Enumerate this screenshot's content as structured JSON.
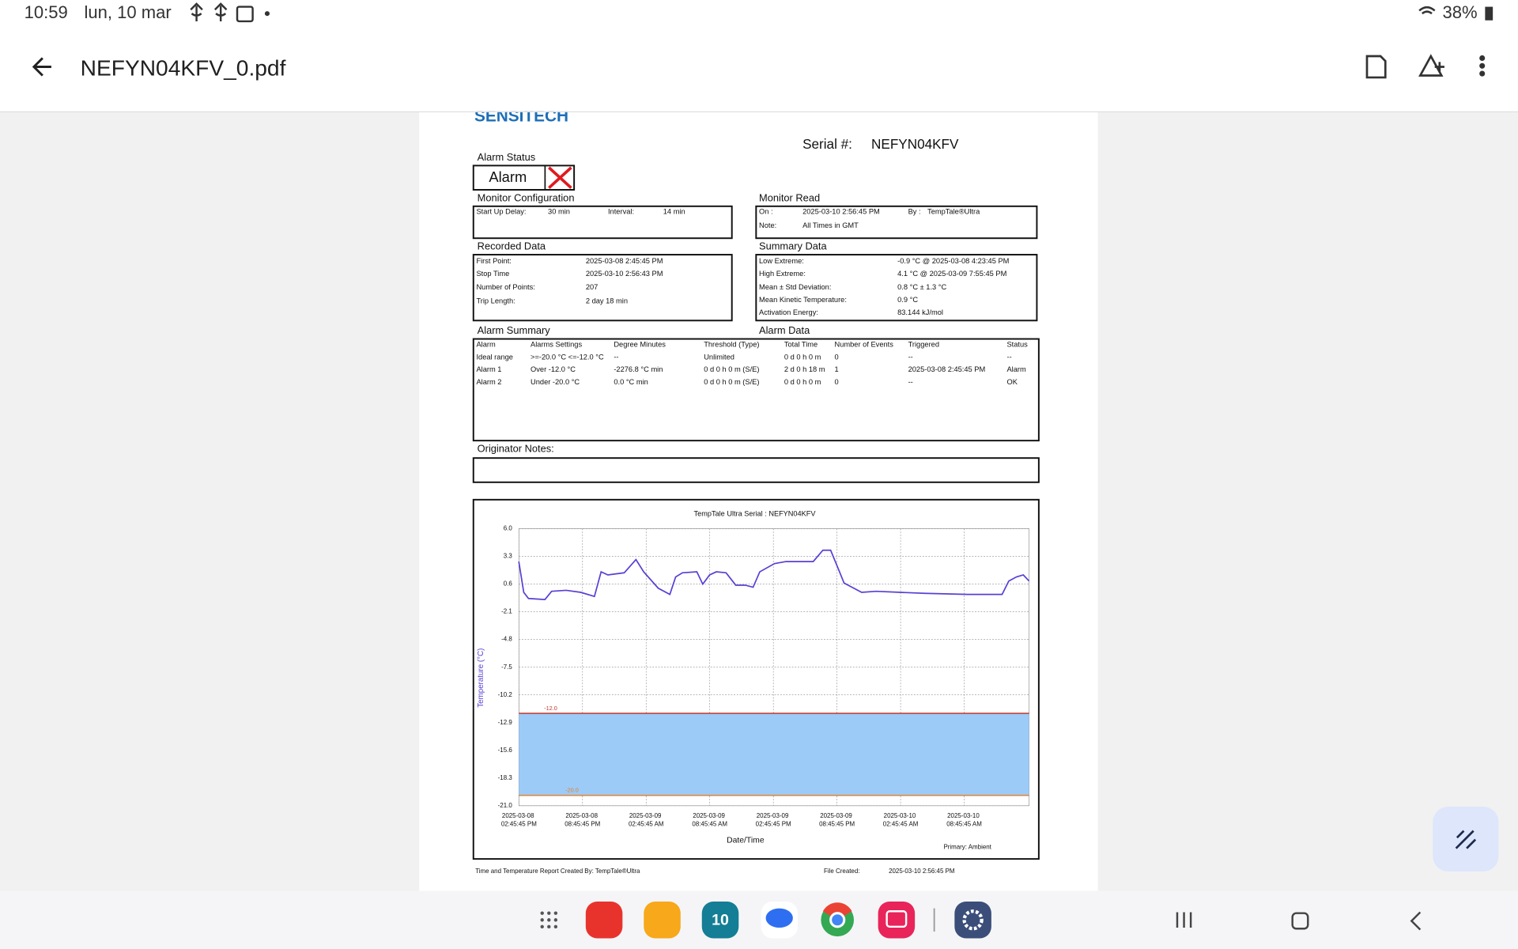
{
  "status_bar": {
    "time": "10:59",
    "date": "lun, 10 mar",
    "battery": "38%"
  },
  "app_bar": {
    "file_name": "NEFYN04KFV_0.pdf"
  },
  "document": {
    "logo": "SENSITECH",
    "serial_label": "Serial #:",
    "serial": "NEFYN04KFV",
    "alarm_status": {
      "title": "Alarm Status",
      "value": "Alarm"
    },
    "monitor_config": {
      "title": "Monitor Configuration",
      "rows": [
        [
          "Start Up Delay:",
          "30 min",
          "Interval:",
          "14 min"
        ]
      ]
    },
    "monitor_read": {
      "title": "Monitor Read",
      "rows": [
        [
          "On :",
          "2025-03-10  2:56:45 PM",
          "By :",
          "TempTale®Ultra"
        ],
        [
          "Note:",
          "All Times in GMT"
        ]
      ]
    },
    "recorded_data": {
      "title": "Recorded Data",
      "rows": [
        [
          "First Point:",
          "2025-03-08  2:45:45 PM"
        ],
        [
          "Stop Time",
          "2025-03-10  2:56:43 PM"
        ],
        [
          "Number of Points:",
          "207"
        ],
        [
          "Trip Length:",
          "2 day 18 min"
        ]
      ]
    },
    "summary_data": {
      "title": "Summary Data",
      "rows": [
        [
          "Low Extreme:",
          "-0.9 °C @ 2025-03-08  4:23:45 PM"
        ],
        [
          "High Extreme:",
          "4.1 °C @ 2025-03-09  7:55:45 PM"
        ],
        [
          "Mean ± Std Deviation:",
          "0.8 °C ± 1.3 °C"
        ],
        [
          "Mean Kinetic Temperature:",
          "0.9 °C"
        ],
        [
          "Activation Energy:",
          "83.144 kJ/mol"
        ]
      ]
    },
    "alarm_summary": {
      "title": "Alarm Summary",
      "title2": "Alarm Data",
      "headers": [
        "Alarm",
        "Alarms Settings",
        "Degree Minutes",
        "Threshold (Type)",
        "Total Time",
        "Number of Events",
        "Triggered",
        "Status"
      ],
      "rows": [
        [
          "Ideal range",
          ">=-20.0 °C <=-12.0 °C",
          "--",
          "Unlimited",
          "0 d 0 h 0 m",
          "0",
          "--",
          "--"
        ],
        [
          "Alarm 1",
          "Over -12.0 °C",
          "-2276.8 °C min",
          "0 d 0 h 0 m (S/E)",
          "2 d 0 h 18 m",
          "1",
          "2025-03-08  2:45:45 PM",
          "Alarm"
        ],
        [
          "Alarm 2",
          "Under -20.0 °C",
          "0.0 °C min",
          "0 d 0 h 0 m (S/E)",
          "0 d 0 h 0 m",
          "0",
          "--",
          "OK"
        ]
      ]
    },
    "originator_notes": "Originator Notes:",
    "footer": {
      "created_by": "Time and Temperature Report Created By:  TempTale®Ultra",
      "file_created_label": "File Created:",
      "file_created": "2025-03-10  2:56:45 PM"
    }
  },
  "chart_data": {
    "type": "line",
    "title": "TempTale Ultra  Serial : NEFYN04KFV",
    "x_label": "Date/Time",
    "y_label": "Temperature (°C)",
    "note": "Primary: Ambient",
    "color": "#5a3fd4",
    "x": [
      "2025-03-08T14:45",
      "2025-03-08T15:13",
      "2025-03-08T15:40",
      "2025-03-08T17:13",
      "2025-03-08T17:51",
      "2025-03-08T19:13",
      "2025-03-08T20:36",
      "2025-03-08T21:53",
      "2025-03-08T22:31",
      "2025-03-08T23:09",
      "2025-03-09T00:42",
      "2025-03-09T01:48",
      "2025-03-09T02:32",
      "2025-03-09T03:54",
      "2025-03-09T05:00",
      "2025-03-09T05:33",
      "2025-03-09T06:11",
      "2025-03-09T07:33",
      "2025-03-09T08:06",
      "2025-03-09T08:45",
      "2025-03-09T09:23",
      "2025-03-09T10:18",
      "2025-03-09T11:13",
      "2025-03-09T12:07",
      "2025-03-09T12:51",
      "2025-03-09T13:29",
      "2025-03-09T14:52",
      "2025-03-09T15:57",
      "2025-03-09T18:31",
      "2025-03-09T19:26",
      "2025-03-09T20:10",
      "2025-03-09T20:48",
      "2025-03-09T21:26",
      "2025-03-09T23:05",
      "2025-03-10T00:27",
      "2025-03-10T02:44",
      "2025-03-10T05:01",
      "2025-03-10T09:08",
      "2025-03-10T12:20",
      "2025-03-10T12:58",
      "2025-03-10T13:41",
      "2025-03-10T14:20",
      "2025-03-10T14:53"
    ],
    "values": [
      2.8,
      -0.2,
      -0.8,
      -0.9,
      -0.1,
      0.0,
      -0.2,
      -0.6,
      1.8,
      1.5,
      1.7,
      3.0,
      1.8,
      0.2,
      -0.4,
      1.3,
      1.7,
      1.8,
      0.6,
      1.5,
      1.8,
      1.7,
      0.5,
      0.5,
      0.3,
      1.8,
      2.6,
      2.8,
      2.8,
      3.9,
      3.9,
      2.3,
      0.7,
      -0.2,
      -0.1,
      -0.2,
      -0.3,
      -0.4,
      -0.4,
      0.9,
      1.3,
      1.5,
      0.9
    ],
    "xlim": [
      "2025-03-08T14:45:45",
      "2025-03-10T14:53:00"
    ],
    "xticks": [
      {
        "value": "2025-03-08T14:45:45",
        "label": "2025-03-08 02:45:45 PM"
      },
      {
        "value": "2025-03-08T20:45:45",
        "label": "2025-03-08 08:45:45 PM"
      },
      {
        "value": "2025-03-09T02:45:45",
        "label": "2025-03-09 02:45:45 AM"
      },
      {
        "value": "2025-03-09T08:45:45",
        "label": "2025-03-09 08:45:45 AM"
      },
      {
        "value": "2025-03-09T14:45:45",
        "label": "2025-03-09 02:45:45 PM"
      },
      {
        "value": "2025-03-09T20:45:45",
        "label": "2025-03-09 08:45:45 PM"
      },
      {
        "value": "2025-03-10T02:45:45",
        "label": "2025-03-10 02:45:45 AM"
      },
      {
        "value": "2025-03-10T08:45:45",
        "label": "2025-03-10 08:45:45 AM"
      }
    ],
    "ylim": [
      -21,
      6
    ],
    "yticks": [
      {
        "value": 6,
        "label": "6.0"
      },
      3.3,
      0.6,
      -2.1,
      -4.8,
      -7.5,
      -10.2,
      -12.9,
      -15.6,
      -18.3,
      {
        "value": -21,
        "label": "-21.0"
      }
    ],
    "grid": true,
    "thresholds": [
      {
        "value": -12,
        "label": "-12.0",
        "color": "#c0392b"
      },
      {
        "value": -20,
        "label": "-20.0",
        "color": "#e67e22"
      }
    ],
    "band_color": "#9ccbf8"
  },
  "dock": {
    "calendar_day": "10"
  }
}
